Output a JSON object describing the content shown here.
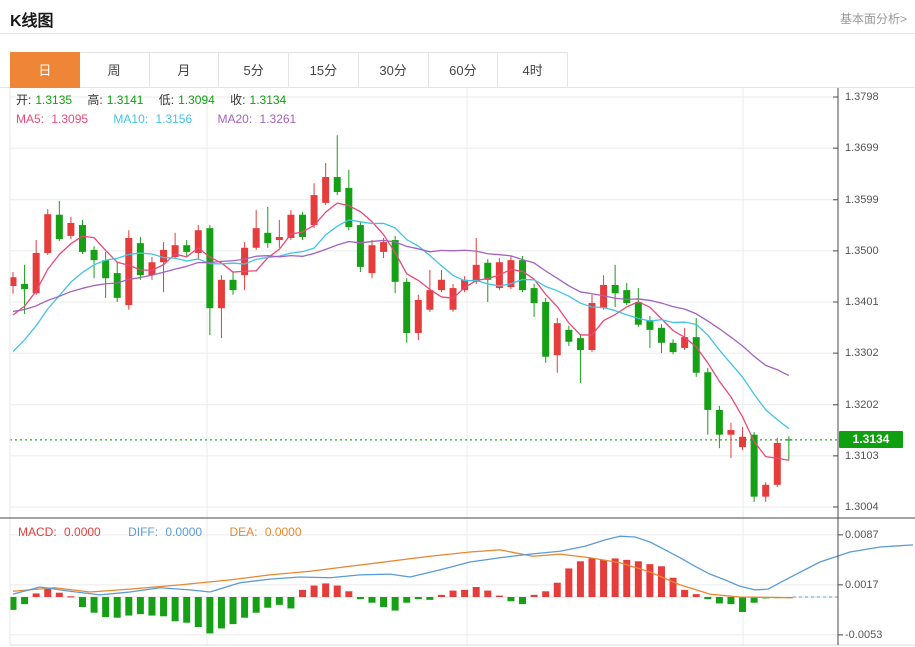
{
  "header": {
    "title": "K线图",
    "link_label": "基本面分析>"
  },
  "tabs": [
    {
      "key": "day",
      "label": "日",
      "active": true
    },
    {
      "key": "week",
      "label": "周",
      "active": false
    },
    {
      "key": "month",
      "label": "月",
      "active": false
    },
    {
      "key": "5min",
      "label": "5分",
      "active": false
    },
    {
      "key": "15min",
      "label": "15分",
      "active": false
    },
    {
      "key": "30min",
      "label": "30分",
      "active": false
    },
    {
      "key": "60min",
      "label": "60分",
      "active": false
    },
    {
      "key": "4hour",
      "label": "4时",
      "active": false
    }
  ],
  "ohlc_legend": {
    "open_label": "开:",
    "open": "1.3135",
    "high_label": "高:",
    "high": "1.3141",
    "low_label": "低:",
    "low": "1.3094",
    "close_label": "收:",
    "close": "1.3134"
  },
  "ma_legend": {
    "ma5_label": "MA5:",
    "ma5": "1.3095",
    "ma10_label": "MA10:",
    "ma10": "1.3156",
    "ma20_label": "MA20:",
    "ma20": "1.3261"
  },
  "macd_legend": {
    "macd_label": "MACD:",
    "macd": "0.0000",
    "diff_label": "DIFF:",
    "diff": "0.0000",
    "dea_label": "DEA:",
    "dea": "0.0000"
  },
  "current_price_label": "1.3134",
  "chart_data": {
    "type": "candlestick",
    "title": "K线图 daily candles with MA5/MA10/MA20, MACD sub-panel",
    "price_axis": {
      "labels": [
        "1.3798",
        "1.3699",
        "1.3599",
        "1.3500",
        "1.3401",
        "1.3302",
        "1.3202",
        "1.3103",
        "1.3004"
      ],
      "values": [
        1.3798,
        1.3699,
        1.3599,
        1.35,
        1.3401,
        1.3302,
        1.3202,
        1.3103,
        1.3004
      ]
    },
    "macd_axis": {
      "labels": [
        "0.0087",
        "0.0017",
        "-0.0053"
      ],
      "values": [
        0.0087,
        0.0017,
        -0.0053
      ]
    },
    "current_price": 1.3134,
    "candles": [
      [
        1.3432,
        1.3459,
        1.3417,
        1.3449
      ],
      [
        1.3436,
        1.3473,
        1.3378,
        1.3426
      ],
      [
        1.3418,
        1.3521,
        1.3415,
        1.3496
      ],
      [
        1.3496,
        1.3581,
        1.3492,
        1.3571
      ],
      [
        1.357,
        1.3597,
        1.3519,
        1.3523
      ],
      [
        1.3529,
        1.3566,
        1.3523,
        1.3554
      ],
      [
        1.355,
        1.356,
        1.3494,
        1.3498
      ],
      [
        1.3502,
        1.3509,
        1.3447,
        1.3482
      ],
      [
        1.3482,
        1.3498,
        1.3409,
        1.3447
      ],
      [
        1.3457,
        1.3478,
        1.3401,
        1.3409
      ],
      [
        1.3395,
        1.354,
        1.3386,
        1.3525
      ],
      [
        1.3515,
        1.3527,
        1.3444,
        1.3453
      ],
      [
        1.3453,
        1.3488,
        1.3444,
        1.3478
      ],
      [
        1.3478,
        1.3517,
        1.342,
        1.3502
      ],
      [
        1.3488,
        1.3535,
        1.3484,
        1.3511
      ],
      [
        1.3511,
        1.3521,
        1.349,
        1.3498
      ],
      [
        1.3496,
        1.355,
        1.3482,
        1.354
      ],
      [
        1.3544,
        1.355,
        1.3337,
        1.3389
      ],
      [
        1.3389,
        1.3453,
        1.3331,
        1.3444
      ],
      [
        1.3444,
        1.3459,
        1.3415,
        1.3424
      ],
      [
        1.3453,
        1.3517,
        1.3424,
        1.3506
      ],
      [
        1.3506,
        1.3579,
        1.3502,
        1.3544
      ],
      [
        1.3535,
        1.3585,
        1.3506,
        1.3515
      ],
      [
        1.3521,
        1.356,
        1.3506,
        1.3527
      ],
      [
        1.3525,
        1.3579,
        1.3521,
        1.357
      ],
      [
        1.357,
        1.3575,
        1.3521,
        1.3527
      ],
      [
        1.355,
        1.3631,
        1.3544,
        1.3608
      ],
      [
        1.3593,
        1.367,
        1.3589,
        1.3643
      ],
      [
        1.3643,
        1.3724,
        1.3608,
        1.3614
      ],
      [
        1.3622,
        1.3657,
        1.354,
        1.3546
      ],
      [
        1.355,
        1.3556,
        1.3459,
        1.3469
      ],
      [
        1.3457,
        1.3521,
        1.3447,
        1.3511
      ],
      [
        1.3498,
        1.3525,
        1.3486,
        1.3517
      ],
      [
        1.3521,
        1.3529,
        1.3418,
        1.344
      ],
      [
        1.344,
        1.3447,
        1.3322,
        1.3341
      ],
      [
        1.3341,
        1.3415,
        1.3327,
        1.3405
      ],
      [
        1.3386,
        1.3463,
        1.3382,
        1.3424
      ],
      [
        1.3424,
        1.3463,
        1.342,
        1.3444
      ],
      [
        1.3386,
        1.3436,
        1.3382,
        1.3428
      ],
      [
        1.3424,
        1.3451,
        1.342,
        1.3444
      ],
      [
        1.344,
        1.3525,
        1.3436,
        1.3473
      ],
      [
        1.3477,
        1.3484,
        1.3401,
        1.3444
      ],
      [
        1.3428,
        1.3486,
        1.3424,
        1.3478
      ],
      [
        1.343,
        1.349,
        1.3426,
        1.3482
      ],
      [
        1.3482,
        1.349,
        1.342,
        1.3424
      ],
      [
        1.3428,
        1.3436,
        1.3372,
        1.3399
      ],
      [
        1.3401,
        1.3409,
        1.3283,
        1.3295
      ],
      [
        1.3298,
        1.337,
        1.3264,
        1.336
      ],
      [
        1.3347,
        1.3355,
        1.3316,
        1.3324
      ],
      [
        1.3331,
        1.3339,
        1.3244,
        1.3308
      ],
      [
        1.3308,
        1.3415,
        1.3304,
        1.3399
      ],
      [
        1.3389,
        1.3453,
        1.3386,
        1.3434
      ],
      [
        1.3434,
        1.3473,
        1.3391,
        1.3418
      ],
      [
        1.3424,
        1.3438,
        1.3395,
        1.3399
      ],
      [
        1.3401,
        1.3428,
        1.3353,
        1.3357
      ],
      [
        1.3366,
        1.3374,
        1.3312,
        1.3347
      ],
      [
        1.3351,
        1.3358,
        1.3302,
        1.3322
      ],
      [
        1.3322,
        1.3329,
        1.33,
        1.3304
      ],
      [
        1.3312,
        1.3351,
        1.3308,
        1.3333
      ],
      [
        1.3333,
        1.337,
        1.3256,
        1.3264
      ],
      [
        1.3265,
        1.3273,
        1.3144,
        1.3192
      ],
      [
        1.3192,
        1.32,
        1.3118,
        1.3144
      ],
      [
        1.3144,
        1.3167,
        1.3099,
        1.3153
      ],
      [
        1.312,
        1.3159,
        1.3114,
        1.314
      ],
      [
        1.3144,
        1.3149,
        1.3014,
        1.3024
      ],
      [
        1.3024,
        1.3052,
        1.3014,
        1.3047
      ],
      [
        1.3047,
        1.3138,
        1.3043,
        1.3128
      ],
      [
        1.3135,
        1.3141,
        1.3094,
        1.3134
      ]
    ],
    "ma_seeds": {
      "ma5": [
        1.334,
        1.335,
        1.336,
        1.338
      ],
      "ma10": [
        1.32,
        1.3222,
        1.3245,
        1.3268,
        1.329,
        1.3312,
        1.3334,
        1.3356,
        1.3375
      ],
      "ma20": [
        1.335,
        1.3355,
        1.336,
        1.3365,
        1.337,
        1.3372,
        1.3375,
        1.3378,
        1.338,
        1.3382,
        1.3384,
        1.3386,
        1.3388,
        1.339,
        1.339,
        1.3392,
        1.3394,
        1.3396,
        1.3398
      ]
    },
    "macd_hist": [
      -0.0018,
      -0.001,
      0.0005,
      0.0013,
      0.0006,
      0.0001,
      -0.0014,
      -0.0022,
      -0.0028,
      -0.0029,
      -0.0026,
      -0.0024,
      -0.0026,
      -0.0027,
      -0.0034,
      -0.0036,
      -0.0042,
      -0.0051,
      -0.0044,
      -0.0038,
      -0.0029,
      -0.0022,
      -0.0015,
      -0.0011,
      -0.0016,
      0.001,
      0.0016,
      0.0019,
      0.0016,
      0.0008,
      -0.0003,
      -0.0008,
      -0.0014,
      -0.0019,
      -0.0008,
      -0.0003,
      -0.0004,
      0.0003,
      0.0009,
      0.001,
      0.0014,
      0.0009,
      0.0002,
      -0.0006,
      -0.001,
      0.0003,
      0.0008,
      0.002,
      0.004,
      0.005,
      0.0054,
      0.0052,
      0.0054,
      0.0052,
      0.005,
      0.0046,
      0.0043,
      0.0027,
      0.001,
      0.0004,
      -0.0003,
      -0.0009,
      -0.001,
      -0.0021,
      -0.0008,
      -0.0002,
      -0.0001,
      0.0
    ],
    "diff_line": [
      [
        13,
        0.0004
      ],
      [
        40,
        0.0014
      ],
      [
        70,
        0.0008
      ],
      [
        100,
        0.0003
      ],
      [
        130,
        0.0007
      ],
      [
        160,
        0.0013
      ],
      [
        190,
        0.001
      ],
      [
        210,
        0.0007
      ],
      [
        240,
        0.002
      ],
      [
        270,
        0.0025
      ],
      [
        300,
        0.0028
      ],
      [
        330,
        0.0027
      ],
      [
        360,
        0.0031
      ],
      [
        390,
        0.0032
      ],
      [
        410,
        0.0028
      ],
      [
        440,
        0.0038
      ],
      [
        470,
        0.0049
      ],
      [
        500,
        0.0055
      ],
      [
        530,
        0.006
      ],
      [
        560,
        0.0064
      ],
      [
        585,
        0.0071
      ],
      [
        605,
        0.008
      ],
      [
        620,
        0.0085
      ],
      [
        635,
        0.0084
      ],
      [
        650,
        0.0077
      ],
      [
        665,
        0.0066
      ],
      [
        680,
        0.0055
      ],
      [
        695,
        0.0043
      ],
      [
        710,
        0.0032
      ],
      [
        725,
        0.0024
      ],
      [
        740,
        0.0015
      ],
      [
        755,
        0.001
      ],
      [
        768,
        0.0011
      ],
      [
        780,
        0.002
      ],
      [
        795,
        0.0031
      ],
      [
        820,
        0.0049
      ],
      [
        850,
        0.0063
      ],
      [
        880,
        0.007
      ],
      [
        913,
        0.0073
      ]
    ],
    "dea_line": [
      [
        13,
        0.0008
      ],
      [
        55,
        0.0013
      ],
      [
        90,
        0.0007
      ],
      [
        130,
        0.0011
      ],
      [
        180,
        0.0017
      ],
      [
        230,
        0.0024
      ],
      [
        270,
        0.0031
      ],
      [
        310,
        0.0036
      ],
      [
        350,
        0.0043
      ],
      [
        390,
        0.005
      ],
      [
        430,
        0.0057
      ],
      [
        470,
        0.0063
      ],
      [
        500,
        0.0066
      ],
      [
        533,
        0.0057
      ],
      [
        560,
        0.006
      ],
      [
        590,
        0.0055
      ],
      [
        620,
        0.0048
      ],
      [
        650,
        0.0035
      ],
      [
        680,
        0.0017
      ],
      [
        710,
        0.0004
      ],
      [
        740,
        0.0
      ],
      [
        793,
        -0.0001
      ]
    ],
    "colors": {
      "up": "#e53c3c",
      "down": "#16a016",
      "ma5": "#ec4878",
      "ma10": "#42c4e6",
      "ma20": "#a263bf",
      "diff": "#5b9bd5",
      "dea": "#e8872e",
      "badge": "#0fa00f",
      "dotted": "#2ba82b",
      "tab_active": "#ef8536",
      "ohlc_value": "#10a010",
      "grid": "#ebebeb",
      "axis": "#4a4a4a"
    }
  }
}
